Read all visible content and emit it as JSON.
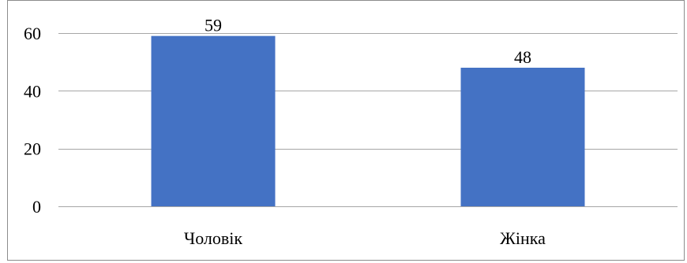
{
  "chart_data": {
    "type": "bar",
    "categories": [
      "Чоловік",
      "Жінка"
    ],
    "values": [
      59,
      48
    ],
    "data_labels": [
      "59",
      "48"
    ],
    "title": "",
    "xlabel": "",
    "ylabel": "",
    "ylim": [
      0,
      60
    ],
    "yticks": [
      0,
      20,
      40,
      60
    ],
    "ytick_labels": [
      "0",
      "20",
      "40",
      "60"
    ],
    "grid": true,
    "legend": "none",
    "bar_color": "#4472C4",
    "gridline_color": "#A6A6A6",
    "frame_color": "#8C8C8C"
  }
}
